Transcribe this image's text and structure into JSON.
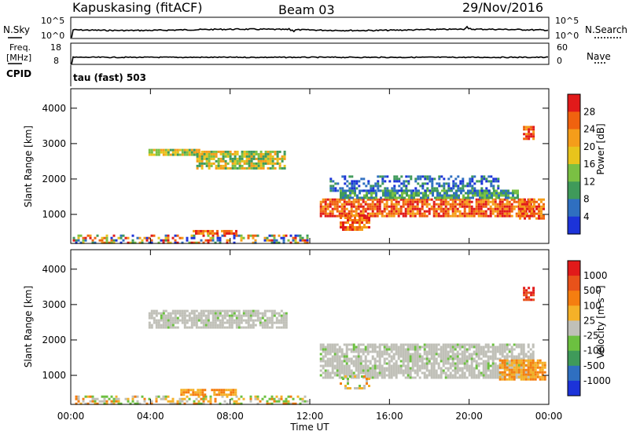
{
  "header": {
    "station": "Kapuskasing (fitACF)",
    "beam": "Beam 03",
    "date": "29/Nov/2016"
  },
  "noise_panel": {
    "left_label": "N.Sky",
    "left_ticks": [
      "10^5",
      "10^0"
    ],
    "right_ticks": [
      "10^5",
      "10^0"
    ],
    "right_label": "N.Search"
  },
  "freq_panel": {
    "left_label_line1": "Freq.",
    "left_label_line2": "[MHz]",
    "left_ticks": [
      "18",
      "8"
    ],
    "right_ticks": [
      "60",
      "0"
    ],
    "right_label": "Nave"
  },
  "cpid": {
    "label": "CPID",
    "mode": "tau (fast) 503"
  },
  "x_axis": {
    "label": "Time UT",
    "ticks": [
      "00:00",
      "04:00",
      "08:00",
      "12:00",
      "16:00",
      "20:00",
      "00:00"
    ]
  },
  "chart_data": [
    {
      "type": "heatmap",
      "name": "power",
      "ylabel": "Slant Range [km]",
      "yticks": [
        "1000",
        "2000",
        "3000",
        "4000"
      ],
      "ylim": [
        180,
        4550
      ],
      "xlim_hours": [
        0,
        24
      ],
      "colorbar": {
        "label": "Power [dB]",
        "tick_labels": [
          "4",
          "8",
          "12",
          "16",
          "20",
          "24",
          "28"
        ],
        "colors": [
          "#1c33d9",
          "#2f6fc0",
          "#3f9a5a",
          "#7ac043",
          "#e8c41c",
          "#f59d1a",
          "#f0620f",
          "#e11a1a"
        ]
      },
      "regions": [
        {
          "t": [
            0.1,
            11.9
          ],
          "r": [
            200,
            430
          ],
          "level": "mixed-low"
        },
        {
          "t": [
            6.0,
            8.3
          ],
          "r": [
            430,
            560
          ],
          "level": "high"
        },
        {
          "t": [
            3.9,
            6.5
          ],
          "r": [
            2700,
            2850
          ],
          "level": "mid"
        },
        {
          "t": [
            6.3,
            10.8
          ],
          "r": [
            2330,
            2800
          ],
          "level": "mid"
        },
        {
          "t": [
            12.5,
            23.2
          ],
          "r": [
            950,
            1450
          ],
          "level": "high"
        },
        {
          "t": [
            13.5,
            22.5
          ],
          "r": [
            1450,
            1700
          ],
          "level": "mid-low"
        },
        {
          "t": [
            13.0,
            21.5
          ],
          "r": [
            1700,
            2100
          ],
          "level": "low"
        },
        {
          "t": [
            13.5,
            15.0
          ],
          "r": [
            600,
            1000
          ],
          "level": "high"
        },
        {
          "t": [
            22.5,
            23.8
          ],
          "r": [
            900,
            1450
          ],
          "level": "high"
        },
        {
          "t": [
            22.7,
            23.2
          ],
          "r": [
            3150,
            3500
          ],
          "level": "high"
        }
      ]
    },
    {
      "type": "heatmap",
      "name": "velocity",
      "ylabel": "Slant Range [km]",
      "yticks": [
        "1000",
        "2000",
        "3000",
        "4000"
      ],
      "ylim": [
        180,
        4550
      ],
      "xlim_hours": [
        0,
        24
      ],
      "colorbar": {
        "label": "Velocity [m s⁻¹]",
        "tick_labels": [
          "1000",
          "500",
          "100",
          "25",
          "-25",
          "-100",
          "-500",
          "-1000"
        ],
        "colors": [
          "#1c33d9",
          "#2f6fc0",
          "#3f9a5a",
          "#6cc040",
          "#c0c0b8",
          "#f5b128",
          "#f57e10",
          "#e8521a",
          "#e11a1a"
        ]
      },
      "regions": [
        {
          "t": [
            0.1,
            11.9
          ],
          "r": [
            200,
            430
          ],
          "level": "mixed-green-orange"
        },
        {
          "t": [
            5.5,
            8.3
          ],
          "r": [
            430,
            620
          ],
          "level": "orange"
        },
        {
          "t": [
            3.9,
            10.8
          ],
          "r": [
            2330,
            2850
          ],
          "level": "grey"
        },
        {
          "t": [
            12.5,
            23.2
          ],
          "r": [
            950,
            1900
          ],
          "level": "grey"
        },
        {
          "t": [
            13.5,
            15.0
          ],
          "r": [
            650,
            1000
          ],
          "level": "mixed-green-orange"
        },
        {
          "t": [
            21.5,
            23.8
          ],
          "r": [
            900,
            1450
          ],
          "level": "orange"
        },
        {
          "t": [
            22.7,
            23.2
          ],
          "r": [
            3150,
            3500
          ],
          "level": "red"
        }
      ]
    }
  ]
}
